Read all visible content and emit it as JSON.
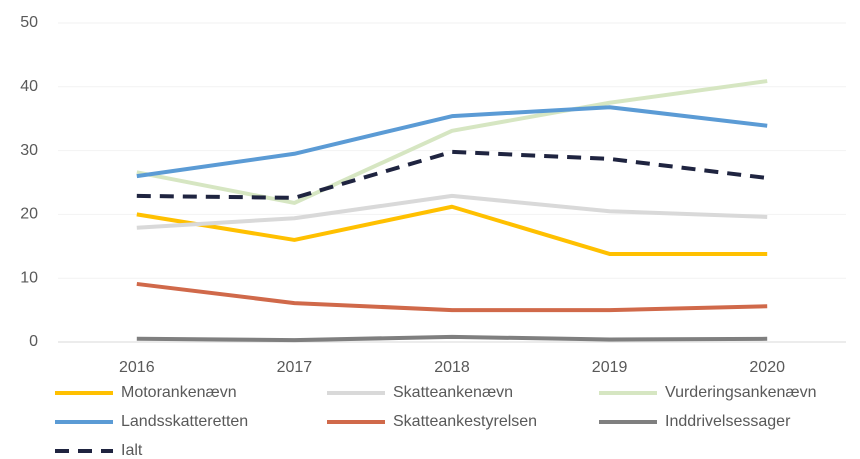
{
  "chart_data": {
    "type": "line",
    "categories": [
      "2016",
      "2017",
      "2018",
      "2019",
      "2020"
    ],
    "series": [
      {
        "name": "Motorankenævn",
        "color": "#ffc000",
        "values": [
          20,
          16,
          21.2,
          13.8,
          13.8
        ]
      },
      {
        "name": "Skatteankenævn",
        "color": "#d9d9d9",
        "values": [
          17.9,
          19.4,
          22.9,
          20.5,
          19.6
        ]
      },
      {
        "name": "Vurderingsankenævn",
        "color": "#d6e6c2",
        "values": [
          26.6,
          21.8,
          33.1,
          37.5,
          40.9
        ]
      },
      {
        "name": "Landsskatteretten",
        "color": "#5b9bd5",
        "values": [
          26,
          29.5,
          35.4,
          36.8,
          33.9
        ]
      },
      {
        "name": "Skatteankestyrelsen",
        "color": "#d0694a",
        "values": [
          9.1,
          6.1,
          5,
          5,
          5.6
        ]
      },
      {
        "name": "Inddrivelsessager",
        "color": "#7f7f7f",
        "values": [
          0.5,
          0.3,
          0.8,
          0.4,
          0.5
        ]
      },
      {
        "name": "Ialt",
        "color": "#1f2440",
        "dashed": true,
        "values": [
          22.9,
          22.6,
          29.8,
          28.7,
          25.7
        ]
      }
    ],
    "ylim": [
      0,
      50
    ],
    "yticks": [
      0,
      10,
      20,
      30,
      40,
      50
    ],
    "grid": true
  }
}
